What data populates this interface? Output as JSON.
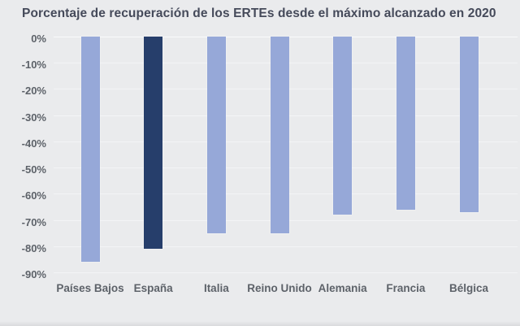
{
  "colors": {
    "background": "#eaebed",
    "bar": "#96a8d8",
    "bar_highlight": "#263e6b",
    "title_text": "#454a5a",
    "axis_text": "#5d6269",
    "gridline": "#f3f4f6"
  },
  "chart_data": {
    "type": "bar",
    "title": "Porcentaje de recuperación de los ERTEs desde el máximo alcanzado en 2020",
    "categories": [
      "Países Bajos",
      "España",
      "Italia",
      "Reino Unido",
      "Alemania",
      "Francia",
      "Bélgica"
    ],
    "values": [
      -86,
      -81,
      -75,
      -75,
      -68,
      -66,
      -67
    ],
    "highlighted_category": "España",
    "highlight_reason": "España bar drawn in dark navy, all others light periwinkle blue",
    "xlabel": "",
    "ylabel": "",
    "ylim": [
      -90,
      0
    ],
    "ytick_step": 10,
    "ytick_labels": [
      "0%",
      "-10%",
      "-20%",
      "-30%",
      "-40%",
      "-50%",
      "-60%",
      "-70%",
      "-80%",
      "-90%"
    ],
    "grid": "horizontal-faint",
    "legend": "none",
    "orientation": "vertical-bars-extending-downward"
  }
}
